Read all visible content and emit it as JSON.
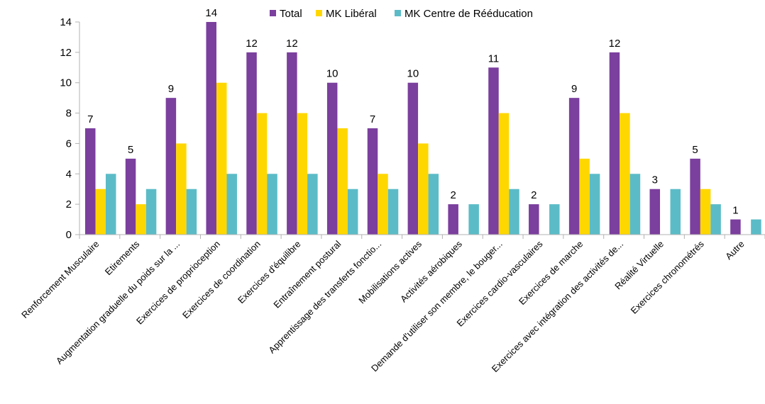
{
  "chart_data": {
    "type": "bar",
    "title": "",
    "xlabel": "",
    "ylabel": "",
    "ylim": [
      0,
      14
    ],
    "yticks": [
      0,
      2,
      4,
      6,
      8,
      10,
      12,
      14
    ],
    "grid": false,
    "legend_position": "top",
    "categories": [
      "Renforcement Musculaire",
      "Etirements",
      "Augmentation graduelle du poids sur la ...",
      "Exercices de proprioception",
      "Exercices de coordination",
      "Exercices d'équilibre",
      "Entraînement postural",
      "Apprentissage des transferts fonctio...",
      "Mobilisations actives",
      "Activités aérobiques",
      "Demande d'utiliser son membre, le bouger...",
      "Exercices cardio-vasculaires",
      "Exercices de marche",
      "Exercices avec intégration des activités de...",
      "Réalité Virtuelle",
      "Exercices chronométrés",
      "Autre"
    ],
    "series": [
      {
        "name": "Total",
        "color": "#7b3f9e",
        "labeled": true,
        "values": [
          7,
          5,
          9,
          14,
          12,
          12,
          10,
          7,
          10,
          2,
          11,
          2,
          9,
          12,
          3,
          5,
          1
        ]
      },
      {
        "name": "MK Libéral",
        "color": "#ffd700",
        "labeled": false,
        "values": [
          3,
          2,
          6,
          10,
          8,
          8,
          7,
          4,
          6,
          0,
          8,
          0,
          5,
          8,
          0,
          3,
          0
        ]
      },
      {
        "name": "MK Centre de Rééducation",
        "color": "#5bbcc7",
        "labeled": false,
        "values": [
          4,
          3,
          3,
          4,
          4,
          4,
          3,
          3,
          4,
          2,
          3,
          2,
          4,
          4,
          3,
          2,
          1
        ]
      }
    ]
  }
}
